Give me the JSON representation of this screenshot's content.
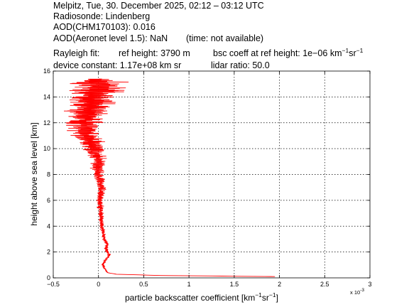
{
  "header": {
    "line1": "Melpitz, Tue, 30. December 2025, 02:12 – 03:12 UTC",
    "line2": "Radiosonde: Lindenberg",
    "line3": "AOD(CHM170103): 0.016",
    "line4a": "AOD(Aeronet level 1.5): NaN",
    "line4b": "(time: not available)",
    "rayleigh_label": "Rayleigh fit:",
    "ref_height": "ref height: 3790 m",
    "bsc_coeff_prefix": "bsc coeff at ref height: 1e−06 km",
    "device_constant": "device constant: 1.17e+08 km sr",
    "lidar_ratio": "lidar ratio: 50.0"
  },
  "units": {
    "km_exp": "−1",
    "sr": "sr",
    "sr_exp": "−1",
    "close": "]"
  },
  "chart_data": {
    "type": "line",
    "xlabel_prefix": "particle backscatter coefficient [km",
    "ylabel": "height above sea level [km]",
    "x_multiplier_label": "x 10",
    "x_multiplier_exp": "-3",
    "xlim": [
      -0.5,
      3.0
    ],
    "ylim": [
      0,
      16
    ],
    "grid": true,
    "x_ticks": [
      -0.5,
      0,
      0.5,
      1,
      1.5,
      2,
      2.5,
      3
    ],
    "x_tick_labels": [
      "−0.5",
      "0",
      "0.5",
      "1",
      "1.5",
      "2",
      "2.5",
      "3"
    ],
    "y_ticks": [
      0,
      2,
      4,
      6,
      8,
      10,
      12,
      14,
      16
    ],
    "y_tick_labels": [
      "0",
      "2",
      "4",
      "6",
      "8",
      "10",
      "12",
      "14",
      "16"
    ],
    "series": [
      {
        "color": "#ff0000",
        "profile": [
          [
            0.1,
            1.95
          ],
          [
            0.18,
            0.7
          ],
          [
            0.28,
            0.2
          ],
          [
            0.4,
            0.1
          ],
          [
            0.6,
            0.08
          ],
          [
            0.8,
            0.06
          ],
          [
            1.0,
            0.05
          ],
          [
            1.2,
            0.06
          ],
          [
            1.5,
            0.09
          ],
          [
            1.8,
            0.12
          ],
          [
            2.0,
            0.1
          ],
          [
            2.3,
            0.08
          ],
          [
            2.6,
            0.1
          ],
          [
            2.9,
            0.07
          ],
          [
            3.2,
            0.06
          ],
          [
            3.5,
            0.05
          ],
          [
            4.0,
            0.04
          ],
          [
            4.5,
            0.03
          ],
          [
            5.0,
            0.03
          ],
          [
            5.5,
            0.02
          ],
          [
            6.0,
            0.01
          ],
          [
            6.5,
            0.02
          ],
          [
            7.0,
            0.03
          ],
          [
            7.5,
            0.02
          ],
          [
            8.0,
            0.0
          ],
          [
            8.5,
            -0.01
          ],
          [
            9.0,
            0.0
          ],
          [
            9.5,
            -0.02
          ],
          [
            10.0,
            -0.05
          ],
          [
            10.5,
            -0.08
          ],
          [
            11.0,
            -0.12
          ],
          [
            11.5,
            -0.15
          ],
          [
            12.0,
            -0.18
          ],
          [
            12.5,
            -0.15
          ],
          [
            13.0,
            -0.1
          ],
          [
            13.5,
            -0.08
          ],
          [
            14.0,
            -0.05
          ],
          [
            14.5,
            -0.03
          ],
          [
            15.0,
            0.0
          ],
          [
            15.4,
            0.02
          ]
        ],
        "noise_spread": [
          [
            0.1,
            0.0
          ],
          [
            1.0,
            0.02
          ],
          [
            3.0,
            0.03
          ],
          [
            5.0,
            0.04
          ],
          [
            7.0,
            0.07
          ],
          [
            8.0,
            0.09
          ],
          [
            9.0,
            0.11
          ],
          [
            10.0,
            0.15
          ],
          [
            11.0,
            0.22
          ],
          [
            12.0,
            0.28
          ],
          [
            13.0,
            0.33
          ],
          [
            14.0,
            0.38
          ],
          [
            15.4,
            0.42
          ]
        ]
      }
    ]
  }
}
